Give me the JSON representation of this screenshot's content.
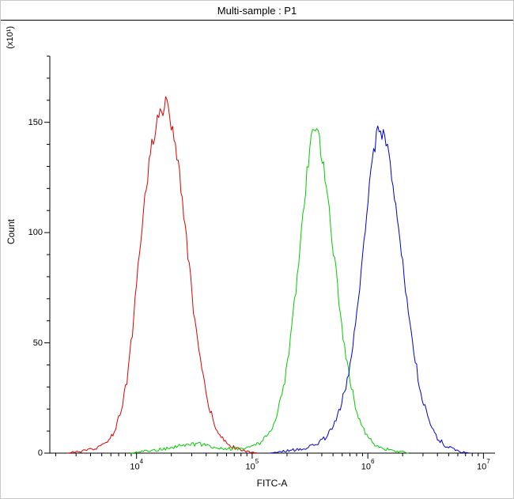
{
  "title": "Multi-sample : P1",
  "x_axis": {
    "label": "FITC-A",
    "scale": "log",
    "tick_exponents": [
      4,
      5,
      6,
      7
    ]
  },
  "y_axis": {
    "label": "Count",
    "multiplier": "(x10¹)",
    "major_ticks": [
      0,
      50,
      100,
      150
    ]
  },
  "chart_data": {
    "type": "line",
    "subtype": "flow-cytometry-histogram-overlay",
    "title": "Multi-sample : P1",
    "xlabel": "FITC-A",
    "ylabel": "Count",
    "x_scale": "log10",
    "xlog_range": [
      3.25,
      7.1
    ],
    "ylim": [
      0,
      180
    ],
    "y_major_ticks": [
      0,
      50,
      100,
      150
    ],
    "y_minor_step": 10,
    "grid": false,
    "legend": "none",
    "series": [
      {
        "name": "red-sample",
        "color": "#dd0000",
        "peak_x_approx": 17800,
        "peak_count_approx": 158,
        "points_logx_count": [
          [
            3.4,
            0
          ],
          [
            3.55,
            1
          ],
          [
            3.65,
            2
          ],
          [
            3.72,
            4
          ],
          [
            3.8,
            9
          ],
          [
            3.86,
            18
          ],
          [
            3.92,
            34
          ],
          [
            3.97,
            58
          ],
          [
            4.02,
            88
          ],
          [
            4.07,
            115
          ],
          [
            4.12,
            136
          ],
          [
            4.17,
            150
          ],
          [
            4.21,
            155
          ],
          [
            4.25,
            158
          ],
          [
            4.29,
            153
          ],
          [
            4.33,
            143
          ],
          [
            4.38,
            122
          ],
          [
            4.44,
            92
          ],
          [
            4.5,
            62
          ],
          [
            4.56,
            38
          ],
          [
            4.63,
            20
          ],
          [
            4.7,
            10
          ],
          [
            4.78,
            4
          ],
          [
            4.87,
            2
          ],
          [
            4.95,
            1
          ],
          [
            5.05,
            0
          ]
        ]
      },
      {
        "name": "green-sample",
        "color": "#00cc00",
        "peak_x_approx": 340000,
        "peak_count_approx": 148,
        "points_logx_count": [
          [
            3.95,
            0
          ],
          [
            4.1,
            1
          ],
          [
            4.25,
            2
          ],
          [
            4.35,
            3
          ],
          [
            4.45,
            4
          ],
          [
            4.55,
            4
          ],
          [
            4.65,
            3
          ],
          [
            4.78,
            2
          ],
          [
            4.9,
            2
          ],
          [
            5.0,
            3
          ],
          [
            5.08,
            5
          ],
          [
            5.15,
            9
          ],
          [
            5.22,
            18
          ],
          [
            5.28,
            32
          ],
          [
            5.34,
            55
          ],
          [
            5.4,
            85
          ],
          [
            5.45,
            115
          ],
          [
            5.49,
            135
          ],
          [
            5.53,
            148
          ],
          [
            5.57,
            144
          ],
          [
            5.61,
            132
          ],
          [
            5.66,
            112
          ],
          [
            5.72,
            84
          ],
          [
            5.78,
            56
          ],
          [
            5.84,
            34
          ],
          [
            5.91,
            18
          ],
          [
            5.98,
            9
          ],
          [
            6.06,
            4
          ],
          [
            6.15,
            2
          ],
          [
            6.25,
            1
          ],
          [
            6.35,
            0
          ]
        ]
      },
      {
        "name": "blue-sample",
        "color": "#0000cc",
        "peak_x_approx": 1290000,
        "peak_count_approx": 147,
        "points_logx_count": [
          [
            5.15,
            0
          ],
          [
            5.3,
            1
          ],
          [
            5.45,
            2
          ],
          [
            5.55,
            4
          ],
          [
            5.63,
            7
          ],
          [
            5.7,
            12
          ],
          [
            5.76,
            20
          ],
          [
            5.82,
            32
          ],
          [
            5.87,
            48
          ],
          [
            5.92,
            70
          ],
          [
            5.96,
            92
          ],
          [
            6.0,
            115
          ],
          [
            6.04,
            133
          ],
          [
            6.08,
            144
          ],
          [
            6.11,
            147
          ],
          [
            6.15,
            142
          ],
          [
            6.19,
            132
          ],
          [
            6.24,
            115
          ],
          [
            6.29,
            92
          ],
          [
            6.34,
            68
          ],
          [
            6.4,
            45
          ],
          [
            6.46,
            27
          ],
          [
            6.53,
            14
          ],
          [
            6.6,
            7
          ],
          [
            6.68,
            3
          ],
          [
            6.77,
            1
          ],
          [
            6.88,
            0
          ]
        ]
      }
    ]
  }
}
